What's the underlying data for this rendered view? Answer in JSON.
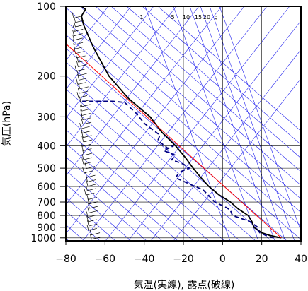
{
  "chart_data": {
    "type": "line",
    "xlabel": "気温(実線), 露点(破線)",
    "ylabel": "気圧(hPa)",
    "xlim": [
      -80,
      40
    ],
    "ylim": [
      1030,
      100
    ],
    "y_scale": "log",
    "x_ticks": [
      -80,
      -60,
      -40,
      -20,
      0,
      20,
      40
    ],
    "x_tick_labels": [
      "−80",
      "−60",
      "−40",
      "−20",
      "0",
      "20",
      "40"
    ],
    "y_ticks": [
      100,
      200,
      300,
      400,
      500,
      600,
      700,
      800,
      900,
      1000
    ],
    "y_tick_labels": [
      "100",
      "200",
      "300",
      "400",
      "500",
      "600",
      "700",
      "800",
      "900",
      "1000"
    ],
    "mixing_ratio_labels": [
      "1",
      "5",
      "10",
      "15",
      "20",
      "g"
    ],
    "colors": {
      "temperature": "#000000",
      "dewpoint": "#000080",
      "parcel": "#ff0000",
      "adiabat": "#2222ee",
      "grid": "#000000"
    },
    "series": [
      {
        "key": "temperature",
        "style": "solid",
        "points": [
          [
            30,
            1000
          ],
          [
            24,
            975
          ],
          [
            20,
            950
          ],
          [
            18,
            925
          ],
          [
            16,
            900
          ],
          [
            15,
            850
          ],
          [
            13,
            800
          ],
          [
            8,
            750
          ],
          [
            4,
            700
          ],
          [
            -2,
            650
          ],
          [
            -7,
            600
          ],
          [
            -11,
            550
          ],
          [
            -15,
            500
          ],
          [
            -19,
            450
          ],
          [
            -24,
            400
          ],
          [
            -31,
            350
          ],
          [
            -37,
            300
          ],
          [
            -48,
            250
          ],
          [
            -58,
            200
          ],
          [
            -66,
            150
          ],
          [
            -71,
            120
          ],
          [
            -72,
            110
          ],
          [
            -70,
            103
          ],
          [
            -72,
            100
          ]
        ]
      },
      {
        "key": "dewpoint",
        "style": "dashed",
        "points": [
          [
            26,
            1000
          ],
          [
            22,
            975
          ],
          [
            19,
            950
          ],
          [
            18,
            925
          ],
          [
            18,
            900
          ],
          [
            14,
            850
          ],
          [
            5,
            800
          ],
          [
            4,
            760
          ],
          [
            2,
            740
          ],
          [
            -4,
            700
          ],
          [
            -10,
            620
          ],
          [
            -14,
            600
          ],
          [
            -24,
            550
          ],
          [
            -22,
            520
          ],
          [
            -17,
            500
          ],
          [
            -20,
            480
          ],
          [
            -26,
            460
          ],
          [
            -24,
            440
          ],
          [
            -30,
            420
          ],
          [
            -25,
            400
          ],
          [
            -28,
            410
          ],
          [
            -33,
            380
          ],
          [
            -32,
            360
          ],
          [
            -40,
            320
          ],
          [
            -44,
            290
          ],
          [
            -50,
            260
          ],
          [
            -56,
            257
          ],
          [
            -72,
            257
          ]
        ]
      },
      {
        "key": "parcel",
        "style": "solid",
        "points": [
          [
            30,
            1000
          ],
          [
            -80,
            145
          ]
        ]
      }
    ]
  }
}
